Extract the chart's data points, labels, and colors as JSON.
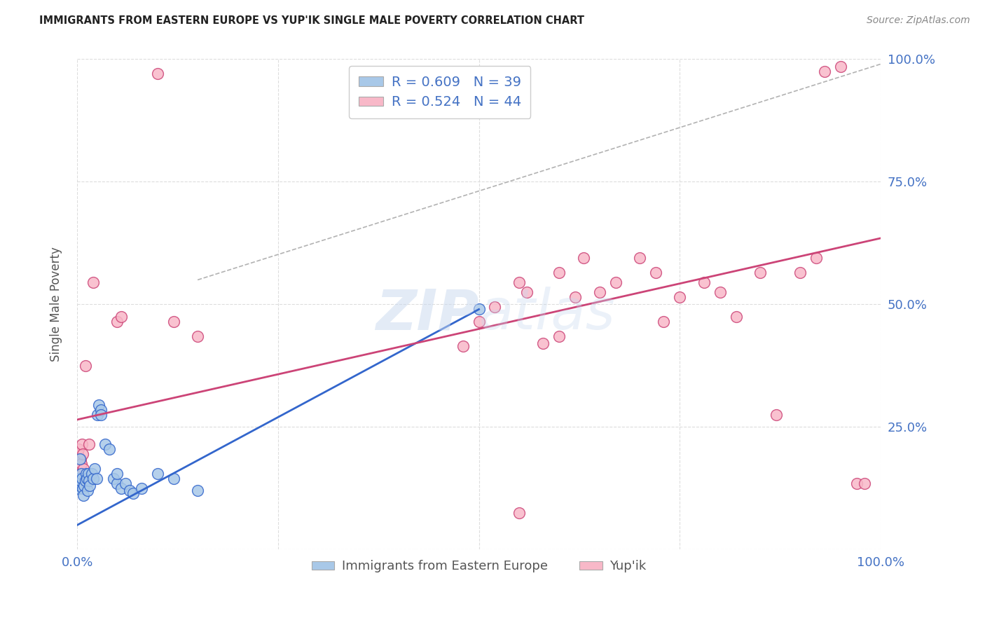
{
  "title": "IMMIGRANTS FROM EASTERN EUROPE VS YUP'IK SINGLE MALE POVERTY CORRELATION CHART",
  "source": "Source: ZipAtlas.com",
  "ylabel": "Single Male Poverty",
  "legend_label1": "Immigrants from Eastern Europe",
  "legend_label2": "Yup'ik",
  "R1": 0.609,
  "N1": 39,
  "R2": 0.524,
  "N2": 44,
  "color_blue": "#a8c8e8",
  "color_pink": "#f8b8c8",
  "line_color_blue": "#3366cc",
  "line_color_pink": "#cc4477",
  "watermark_color": "#c8d8ee",
  "blue_points": [
    [
      0.001,
      0.145
    ],
    [
      0.002,
      0.125
    ],
    [
      0.003,
      0.13
    ],
    [
      0.004,
      0.14
    ],
    [
      0.005,
      0.155
    ],
    [
      0.006,
      0.145
    ],
    [
      0.007,
      0.125
    ],
    [
      0.008,
      0.11
    ],
    [
      0.009,
      0.13
    ],
    [
      0.01,
      0.14
    ],
    [
      0.011,
      0.155
    ],
    [
      0.012,
      0.145
    ],
    [
      0.013,
      0.12
    ],
    [
      0.014,
      0.155
    ],
    [
      0.015,
      0.14
    ],
    [
      0.016,
      0.13
    ],
    [
      0.018,
      0.155
    ],
    [
      0.02,
      0.145
    ],
    [
      0.022,
      0.165
    ],
    [
      0.024,
      0.145
    ],
    [
      0.025,
      0.275
    ],
    [
      0.027,
      0.295
    ],
    [
      0.03,
      0.285
    ],
    [
      0.03,
      0.275
    ],
    [
      0.035,
      0.215
    ],
    [
      0.04,
      0.205
    ],
    [
      0.045,
      0.145
    ],
    [
      0.05,
      0.135
    ],
    [
      0.05,
      0.155
    ],
    [
      0.055,
      0.125
    ],
    [
      0.06,
      0.135
    ],
    [
      0.065,
      0.12
    ],
    [
      0.07,
      0.115
    ],
    [
      0.08,
      0.125
    ],
    [
      0.1,
      0.155
    ],
    [
      0.12,
      0.145
    ],
    [
      0.15,
      0.12
    ],
    [
      0.5,
      0.49
    ],
    [
      0.003,
      0.185
    ]
  ],
  "pink_points": [
    [
      0.001,
      0.195
    ],
    [
      0.002,
      0.205
    ],
    [
      0.003,
      0.155
    ],
    [
      0.004,
      0.185
    ],
    [
      0.005,
      0.175
    ],
    [
      0.006,
      0.215
    ],
    [
      0.007,
      0.195
    ],
    [
      0.008,
      0.165
    ],
    [
      0.01,
      0.375
    ],
    [
      0.015,
      0.215
    ],
    [
      0.02,
      0.545
    ],
    [
      0.05,
      0.465
    ],
    [
      0.055,
      0.475
    ],
    [
      0.1,
      0.97
    ],
    [
      0.12,
      0.465
    ],
    [
      0.15,
      0.435
    ],
    [
      0.5,
      0.465
    ],
    [
      0.52,
      0.495
    ],
    [
      0.55,
      0.545
    ],
    [
      0.56,
      0.525
    ],
    [
      0.58,
      0.42
    ],
    [
      0.6,
      0.565
    ],
    [
      0.62,
      0.515
    ],
    [
      0.63,
      0.595
    ],
    [
      0.65,
      0.525
    ],
    [
      0.67,
      0.545
    ],
    [
      0.7,
      0.595
    ],
    [
      0.72,
      0.565
    ],
    [
      0.73,
      0.465
    ],
    [
      0.75,
      0.515
    ],
    [
      0.78,
      0.545
    ],
    [
      0.8,
      0.525
    ],
    [
      0.82,
      0.475
    ],
    [
      0.85,
      0.565
    ],
    [
      0.87,
      0.275
    ],
    [
      0.9,
      0.565
    ],
    [
      0.92,
      0.595
    ],
    [
      0.93,
      0.975
    ],
    [
      0.95,
      0.985
    ],
    [
      0.97,
      0.135
    ],
    [
      0.98,
      0.135
    ],
    [
      0.48,
      0.415
    ],
    [
      0.6,
      0.435
    ],
    [
      0.55,
      0.075
    ]
  ],
  "blue_line": {
    "x0": 0.0,
    "y0": 0.05,
    "x1": 0.5,
    "y1": 0.49
  },
  "pink_line": {
    "x0": 0.0,
    "y0": 0.265,
    "x1": 1.0,
    "y1": 0.635
  },
  "diag_line": {
    "x0": 0.15,
    "y0": 0.55,
    "x1": 1.0,
    "y1": 0.99
  },
  "xlim": [
    0.0,
    1.0
  ],
  "ylim": [
    0.0,
    1.0
  ],
  "ytick_positions": [
    0.0,
    0.25,
    0.5,
    0.75,
    1.0
  ],
  "ytick_right_labels": [
    "",
    "25.0%",
    "50.0%",
    "75.0%",
    "100.0%"
  ],
  "xtick_positions": [
    0.0,
    0.25,
    0.5,
    0.75,
    1.0
  ],
  "xtick_labels": [
    "0.0%",
    "",
    "",
    "",
    "100.0%"
  ],
  "grid_color": "#dddddd",
  "background_color": "#ffffff"
}
